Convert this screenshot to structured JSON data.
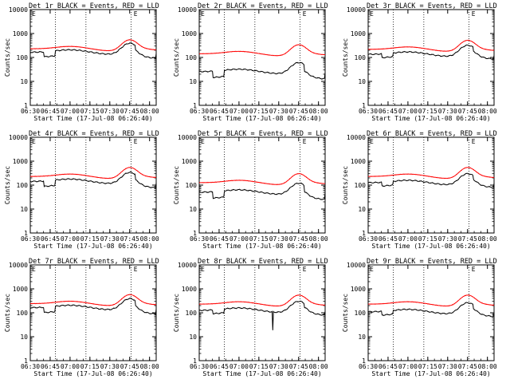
{
  "chart_data": {
    "type": "line",
    "layout": "3x3 grid of plots",
    "x_ticks": [
      "06:30",
      "06:45",
      "07:00",
      "07:15",
      "07:30",
      "07:45",
      "08:00"
    ],
    "y_ticks": [
      "1",
      "10",
      "100",
      "1000",
      "10000"
    ],
    "ylabel": "Counts/sec",
    "xlabel": "Start Time (17-Jul-08 06:26:40)",
    "y_scale": "log",
    "ylim": [
      1,
      10000
    ],
    "xlim": [
      "06:30",
      "08:05"
    ],
    "marker": "E",
    "grid": false,
    "vertical_markers": [
      "06:49",
      "07:12",
      "07:46"
    ],
    "colors": {
      "events": "#000000",
      "lld": "#ff0000"
    },
    "panels": [
      {
        "title": "Det 1r BLACK = Events, RED = LLD",
        "lld_scale": 1.0,
        "events_scale": 0.72,
        "gap": 0.62,
        "spike": false
      },
      {
        "title": "Det 2r BLACK = Events, RED = LLD",
        "lld_scale": 0.62,
        "events_scale": 0.18,
        "gap": 0.55,
        "spike": false
      },
      {
        "title": "Det 3r BLACK = Events, RED = LLD",
        "lld_scale": 0.95,
        "events_scale": 0.62,
        "gap": 0.7,
        "spike": false
      },
      {
        "title": "Det 4r BLACK = Events, RED = LLD",
        "lld_scale": 1.0,
        "events_scale": 0.62,
        "gap": 0.6,
        "spike": false
      },
      {
        "title": "Det 5r BLACK = Events, RED = LLD",
        "lld_scale": 0.55,
        "events_scale": 0.4,
        "gap": 0.55,
        "spike": false
      },
      {
        "title": "Det 6r BLACK = Events, RED = LLD",
        "lld_scale": 1.0,
        "events_scale": 0.55,
        "gap": 0.7,
        "spike": false
      },
      {
        "title": "Det 7r BLACK = Events, RED = LLD",
        "lld_scale": 1.05,
        "events_scale": 0.68,
        "gap": 0.6,
        "spike": false
      },
      {
        "title": "Det 8r BLACK = Events, RED = LLD",
        "lld_scale": 1.0,
        "events_scale": 0.55,
        "gap": 0.7,
        "spike": true
      },
      {
        "title": "Det 9r BLACK = Events, RED = LLD",
        "lld_scale": 1.0,
        "events_scale": 0.48,
        "gap": 0.7,
        "spike": false
      }
    ]
  }
}
